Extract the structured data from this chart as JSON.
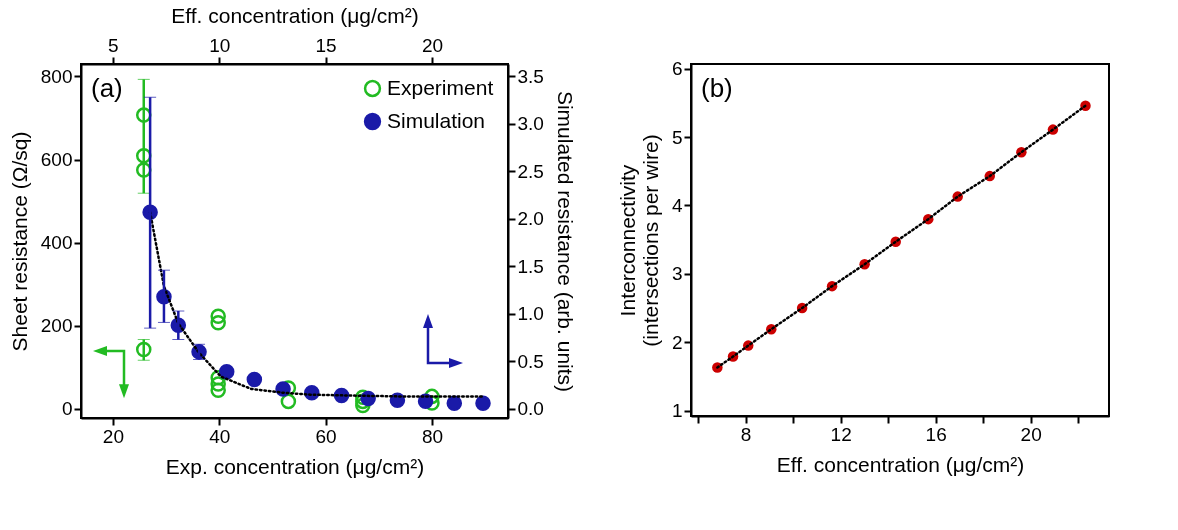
{
  "chart_data": [
    {
      "type": "scatter",
      "xlabel": "Exp. concentration (μg/cm²)",
      "x2label": "Eff. concentration (μg/cm²)",
      "ylabel": "Sheet resistance (Ω/sq)",
      "y2label": "Simulated resistance (arb. units)",
      "annotations": [
        "(a)"
      ],
      "xlim": [
        14,
        94.3
      ],
      "xticks": [
        20,
        40,
        60,
        80
      ],
      "x2lim": [
        3.5,
        23.575
      ],
      "x2ticks": [
        5,
        10,
        15,
        20
      ],
      "ylim": [
        -22,
        830
      ],
      "yticks": [
        0,
        200,
        400,
        600,
        800
      ],
      "y2lim": [
        -0.096,
        3.63
      ],
      "y2ticks": [
        {
          "value": 0,
          "label": "0.0"
        },
        {
          "value": 0.5,
          "label": "0.5"
        },
        {
          "value": 1,
          "label": "1.0"
        },
        {
          "value": 1.5,
          "label": "1.5"
        },
        {
          "value": 2,
          "label": "2.0"
        },
        {
          "value": 2.5,
          "label": "2.5"
        },
        {
          "value": 3,
          "label": "3.0"
        },
        {
          "value": 3.5,
          "label": "3.5"
        }
      ],
      "marker": "circle",
      "legend": "top right",
      "series": [
        {
          "name": "Experiment",
          "color": "#22bb22",
          "x": [
            25.8,
            25.8,
            25.8,
            25.8,
            39.8,
            39.8,
            39.8,
            39.8,
            39.8,
            53,
            53,
            67,
            67,
            67,
            80,
            80
          ],
          "values": [
            707,
            609,
            575,
            143,
            223,
            207,
            75,
            60,
            45,
            50,
            18,
            28,
            18,
            8,
            30,
            14
          ],
          "errors": [
            null,
            [
              519,
              793
            ],
            null,
            [
              117,
              167
            ],
            null,
            null,
            null,
            null,
            null,
            null,
            null,
            null,
            null,
            null,
            null,
            null
          ]
        },
        {
          "name": "Simulation",
          "color": "#1a1aa8",
          "axis": "y2",
          "x": [
            27,
            29.6,
            32.3,
            36.2,
            41.4,
            46.6,
            52,
            57.4,
            63,
            68,
            73.5,
            78.8,
            84.2,
            89.6
          ],
          "values": [
            2.07,
            1.18,
            0.88,
            0.6,
            0.39,
            0.31,
            0.21,
            0.17,
            0.14,
            0.11,
            0.09,
            0.08,
            0.06,
            0.06
          ],
          "errors": [
            [
              0.85,
              3.28
            ],
            [
              0.91,
              1.46
            ],
            [
              0.73,
              1.03
            ],
            [
              0.52,
              0.68
            ],
            null,
            null,
            null,
            null,
            null,
            null,
            null,
            null,
            null,
            null
          ]
        },
        {
          "type": "line",
          "color": "#000000",
          "axis": "y2",
          "line_style": "dotted",
          "marker": "none",
          "x": [
            27,
            29.6,
            32.3,
            36.2,
            40.3,
            46,
            52,
            57,
            65,
            75,
            89.6
          ],
          "values": [
            2.07,
            1.29,
            0.9,
            0.59,
            0.34,
            0.21,
            0.17,
            0.15,
            0.14,
            0.13,
            0.13
          ]
        }
      ]
    },
    {
      "type": "scatter",
      "xlabel": "Eff. concentration (μg/cm²)",
      "ylabel": "Interconnectivity\n(intersections per wire)",
      "annotations": [
        "(b)"
      ],
      "xlim": [
        5.7,
        23.3
      ],
      "xticks": [
        {
          "value": 6,
          "label": null
        },
        8,
        {
          "value": 10,
          "label": null
        },
        12,
        {
          "value": 14,
          "label": null
        },
        16,
        {
          "value": 18,
          "label": null
        },
        20,
        {
          "value": 22,
          "label": null
        }
      ],
      "ylim": [
        0.92,
        6.07
      ],
      "yticks": [
        1,
        2,
        3,
        4,
        5,
        6
      ],
      "marker": "circle",
      "x": [
        6.81,
        7.47,
        8.11,
        9.08,
        10.38,
        11.64,
        13.01,
        14.32,
        15.69,
        16.93,
        18.28,
        19.61,
        20.94,
        22.31
      ],
      "series": [
        {
          "color": "#cc0000",
          "values": [
            1.63,
            1.79,
            1.95,
            2.19,
            2.5,
            2.82,
            3.14,
            3.47,
            3.8,
            4.13,
            4.43,
            4.78,
            5.11,
            5.46
          ]
        },
        {
          "type": "line",
          "color": "#000000",
          "line_style": "dotted",
          "marker": "none",
          "x": [
            6.81,
            7.47,
            8.11,
            9.08,
            10.38,
            11.64,
            13.01,
            14.32,
            15.69,
            16.93,
            18.28,
            19.61,
            20.94,
            22.31
          ],
          "values": [
            1.63,
            1.79,
            1.95,
            2.19,
            2.5,
            2.82,
            3.14,
            3.47,
            3.8,
            4.13,
            4.43,
            4.78,
            5.11,
            5.46
          ]
        }
      ]
    }
  ]
}
